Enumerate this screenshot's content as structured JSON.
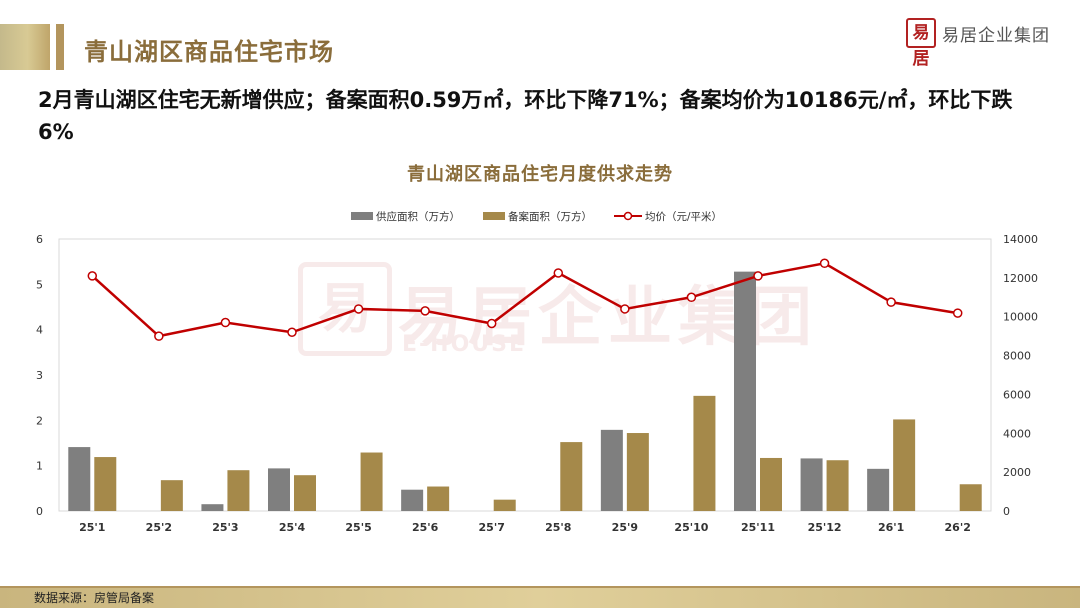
{
  "page": {
    "title": "青山湖区商品住宅市场",
    "headline": "2月青山湖区住宅无新增供应；备案面积0.59万㎡，环比下降71%；备案均价为10186元/㎡，环比下跌6%",
    "source_note": "数据来源：房管局备案"
  },
  "logo": {
    "seal": "易居",
    "text": "易居企业集团"
  },
  "watermark": {
    "text": "易居企业集团",
    "sub": "E-HOUSE"
  },
  "colors": {
    "supply": "#7f7f7f",
    "filed": "#a5894a",
    "price": "#c00000",
    "gold": "#8a6d3b"
  },
  "chart_data": {
    "type": "bar",
    "title": "青山湖区商品住宅月度供求走势",
    "categories": [
      "25'1",
      "25'2",
      "25'3",
      "25'4",
      "25'5",
      "25'6",
      "25'7",
      "25'8",
      "25'9",
      "25'10",
      "25'11",
      "25'12",
      "26'1",
      "26'2"
    ],
    "series": [
      {
        "name": "供应面积（万方）",
        "type": "bar",
        "axis": "left",
        "values": [
          1.41,
          0,
          0.15,
          0.94,
          0,
          0.47,
          0,
          0,
          1.79,
          0,
          5.28,
          1.16,
          0.93,
          0
        ]
      },
      {
        "name": "备案面积（万方）",
        "type": "bar",
        "axis": "left",
        "values": [
          1.19,
          0.68,
          0.9,
          0.79,
          1.29,
          0.54,
          0.25,
          1.52,
          1.72,
          2.54,
          1.17,
          1.12,
          2.02,
          0.59
        ]
      },
      {
        "name": "均价（元/平米）",
        "type": "line",
        "axis": "right",
        "values": [
          12100,
          9000,
          9700,
          9200,
          10400,
          10300,
          9650,
          12250,
          10400,
          11000,
          12100,
          12750,
          10750,
          10186
        ]
      }
    ],
    "left_axis": {
      "ylim": [
        0,
        6
      ],
      "ticks": [
        0,
        1,
        2,
        3,
        4,
        5,
        6
      ]
    },
    "right_axis": {
      "ylim": [
        0,
        14000
      ],
      "ticks": [
        0,
        2000,
        4000,
        6000,
        8000,
        10000,
        12000,
        14000
      ]
    },
    "legend_position": "top-center",
    "grid": false
  }
}
